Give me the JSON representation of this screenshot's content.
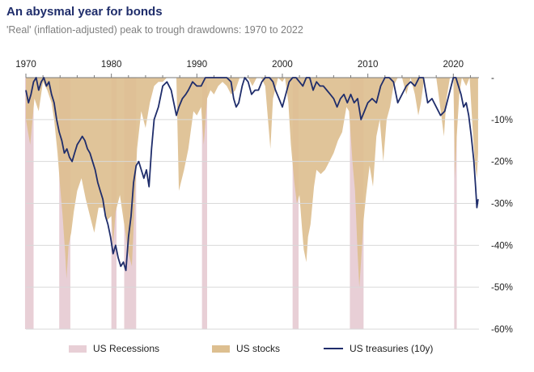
{
  "title": "An abysmal year for bonds",
  "subtitle": "'Real' (inflation-adjusted) peak to trough drawdowns: 1970 to 2022",
  "colors": {
    "recession": "#e8cfd6",
    "stocks": "#ddbf90",
    "treasuries": "#1f2d6b",
    "grid": "#d9d9d9",
    "axis": "#7a7a7a"
  },
  "chart_data": {
    "type": "area",
    "title": "An abysmal year for bonds",
    "subtitle": "'Real' (inflation-adjusted) peak to trough drawdowns: 1970 to 2022",
    "xlabel": "",
    "ylabel": "",
    "xlim": [
      1970,
      2023
    ],
    "ylim": [
      -60,
      0
    ],
    "x_ticks": [
      1970,
      1980,
      1990,
      2000,
      2010,
      2020
    ],
    "y_ticks": [
      {
        "value": 0,
        "label": "-"
      },
      {
        "value": -10,
        "label": "-10%"
      },
      {
        "value": -20,
        "label": "-20%"
      },
      {
        "value": -30,
        "label": "-30%"
      },
      {
        "value": -40,
        "label": "-40%"
      },
      {
        "value": -50,
        "label": "-50%"
      },
      {
        "value": -60,
        "label": "-60%"
      }
    ],
    "grid": "horizontal",
    "legend_position": "bottom",
    "legend": [
      "US Recessions",
      "US stocks",
      "US treasuries (10y)"
    ],
    "recessions": [
      [
        1969.9,
        1970.9
      ],
      [
        1973.9,
        1975.2
      ],
      [
        1980.0,
        1980.6
      ],
      [
        1981.5,
        1982.9
      ],
      [
        1990.6,
        1991.2
      ],
      [
        2001.2,
        2001.9
      ],
      [
        2007.9,
        2009.5
      ],
      [
        2020.1,
        2020.4
      ]
    ],
    "series": [
      {
        "name": "US stocks",
        "type": "area",
        "x": [
          1970.0,
          1970.5,
          1971.0,
          1971.5,
          1972.0,
          1972.5,
          1973.0,
          1973.3,
          1973.7,
          1974.0,
          1974.3,
          1974.6,
          1974.75,
          1975.0,
          1975.3,
          1975.6,
          1976.0,
          1976.5,
          1977.0,
          1977.5,
          1978.0,
          1978.5,
          1979.0,
          1979.5,
          1980.0,
          1980.2,
          1980.5,
          1981.0,
          1981.5,
          1982.0,
          1982.4,
          1982.6,
          1983.0,
          1983.5,
          1984.0,
          1984.5,
          1985.0,
          1985.5,
          1986.0,
          1986.5,
          1987.0,
          1987.6,
          1987.9,
          1988.5,
          1989.0,
          1989.6,
          1990.0,
          1990.5,
          1990.8,
          1991.2,
          1991.6,
          1992.0,
          1992.5,
          1993.0,
          1993.5,
          1994.0,
          1994.5,
          1995.0,
          1995.5,
          1996.0,
          1996.5,
          1997.0,
          1997.5,
          1998.0,
          1998.6,
          1998.9,
          1999.5,
          2000.0,
          2000.3,
          2000.7,
          2001.0,
          2001.4,
          2001.7,
          2002.0,
          2002.3,
          2002.5,
          2002.8,
          2003.0,
          2003.3,
          2003.7,
          2004.0,
          2004.5,
          2005.0,
          2005.5,
          2006.0,
          2006.5,
          2007.0,
          2007.5,
          2007.8,
          2008.2,
          2008.5,
          2008.8,
          2009.0,
          2009.2,
          2009.5,
          2009.8,
          2010.2,
          2010.6,
          2011.0,
          2011.4,
          2011.8,
          2012.2,
          2012.6,
          2013.0,
          2013.5,
          2014.0,
          2014.5,
          2015.0,
          2015.5,
          2015.9,
          2016.2,
          2016.6,
          2017.0,
          2017.5,
          2018.0,
          2018.4,
          2018.9,
          2019.2,
          2019.6,
          2020.0,
          2020.2,
          2020.4,
          2020.7,
          2021.0,
          2021.5,
          2021.9,
          2022.2,
          2022.5,
          2022.75,
          2022.9
        ],
        "values": [
          -10,
          -16,
          -5,
          -8,
          -1,
          -3,
          -6,
          -10,
          -18,
          -26,
          -33,
          -42,
          -48,
          -40,
          -37,
          -32,
          -27,
          -24,
          -29,
          -33,
          -37,
          -31,
          -31,
          -34,
          -33,
          -40,
          -32,
          -28,
          -35,
          -42,
          -45,
          -36,
          -17,
          -8,
          -12,
          -6,
          -2,
          -1,
          -1,
          0,
          0,
          0,
          -27,
          -22,
          -17,
          -8,
          -9,
          -7,
          -16,
          -5,
          -3,
          -4,
          -2,
          -1,
          -2,
          -4,
          -3,
          0,
          0,
          0,
          -2,
          0,
          0,
          -2,
          -17,
          -5,
          0,
          -1,
          0,
          -6,
          -16,
          -25,
          -30,
          -28,
          -36,
          -41,
          -44,
          -38,
          -35,
          -26,
          -22,
          -23,
          -22,
          -20,
          -18,
          -15,
          -13,
          -7,
          -8,
          -20,
          -27,
          -42,
          -50,
          -44,
          -34,
          -28,
          -21,
          -26,
          -14,
          -10,
          -20,
          -10,
          -7,
          -2,
          0,
          0,
          -4,
          0,
          -4,
          -9,
          -6,
          0,
          0,
          0,
          0,
          -6,
          -14,
          -5,
          0,
          0,
          -24,
          -14,
          -4,
          0,
          -2,
          0,
          -10,
          -20,
          -24,
          -18
        ]
      },
      {
        "name": "US treasuries (10y)",
        "type": "line",
        "x": [
          1970.0,
          1970.3,
          1970.6,
          1970.9,
          1971.2,
          1971.5,
          1971.8,
          1972.1,
          1972.4,
          1972.7,
          1973.0,
          1973.3,
          1973.6,
          1973.9,
          1974.2,
          1974.5,
          1974.8,
          1975.1,
          1975.4,
          1975.7,
          1976.0,
          1976.3,
          1976.6,
          1976.9,
          1977.2,
          1977.5,
          1977.8,
          1978.1,
          1978.4,
          1978.7,
          1979.0,
          1979.3,
          1979.6,
          1979.9,
          1980.2,
          1980.5,
          1980.8,
          1981.1,
          1981.4,
          1981.7,
          1982.0,
          1982.3,
          1982.6,
          1982.9,
          1983.2,
          1983.5,
          1983.8,
          1984.1,
          1984.4,
          1984.7,
          1985.0,
          1985.5,
          1986.0,
          1986.5,
          1987.0,
          1987.3,
          1987.6,
          1987.9,
          1988.3,
          1988.7,
          1989.0,
          1989.5,
          1990.0,
          1990.5,
          1991.0,
          1991.5,
          1992.0,
          1992.5,
          1993.0,
          1993.5,
          1994.0,
          1994.3,
          1994.6,
          1994.9,
          1995.3,
          1995.6,
          1996.0,
          1996.4,
          1996.8,
          1997.2,
          1997.6,
          1998.0,
          1998.5,
          1998.9,
          1999.2,
          1999.6,
          2000.0,
          2000.4,
          2000.8,
          2001.2,
          2001.6,
          2002.0,
          2002.4,
          2002.8,
          2003.2,
          2003.6,
          2004.0,
          2004.4,
          2004.8,
          2005.2,
          2005.6,
          2006.0,
          2006.4,
          2006.8,
          2007.2,
          2007.6,
          2008.0,
          2008.4,
          2008.8,
          2009.2,
          2009.6,
          2010.0,
          2010.5,
          2011.0,
          2011.5,
          2012.0,
          2012.5,
          2013.0,
          2013.5,
          2014.0,
          2014.5,
          2015.0,
          2015.5,
          2016.0,
          2016.5,
          2017.0,
          2017.5,
          2018.0,
          2018.5,
          2019.0,
          2019.5,
          2020.0,
          2020.3,
          2020.6,
          2020.9,
          2021.2,
          2021.5,
          2021.8,
          2022.1,
          2022.4,
          2022.6,
          2022.75,
          2022.9
        ],
        "values": [
          -3,
          -6,
          -4,
          -1,
          0,
          -3,
          -1,
          0,
          -2,
          -1,
          -4,
          -6,
          -10,
          -13,
          -15,
          -18,
          -17,
          -19,
          -20,
          -18,
          -16,
          -15,
          -14,
          -15,
          -17,
          -18,
          -20,
          -22,
          -25,
          -27,
          -29,
          -33,
          -35,
          -38,
          -42,
          -40,
          -43,
          -45,
          -44,
          -46,
          -38,
          -33,
          -25,
          -21,
          -20,
          -22,
          -24,
          -22,
          -26,
          -17,
          -10,
          -7,
          -2,
          -1,
          -3,
          -6,
          -9,
          -7,
          -5,
          -4,
          -3,
          -1,
          -2,
          -2,
          0,
          0,
          0,
          0,
          0,
          0,
          -1,
          -5,
          -7,
          -6,
          -2,
          0,
          -1,
          -4,
          -3,
          -3,
          -1,
          0,
          0,
          -1,
          -3,
          -5,
          -7,
          -4,
          -1,
          0,
          0,
          -1,
          -2,
          0,
          0,
          -3,
          -1,
          -2,
          -2,
          -3,
          -4,
          -5,
          -7,
          -5,
          -4,
          -6,
          -4,
          -6,
          -5,
          -10,
          -8,
          -6,
          -5,
          -6,
          -2,
          0,
          0,
          -1,
          -6,
          -4,
          -2,
          -1,
          -2,
          0,
          0,
          -6,
          -5,
          -7,
          -9,
          -8,
          -4,
          0,
          0,
          -2,
          -4,
          -7,
          -6,
          -9,
          -14,
          -20,
          -26,
          -31,
          -29
        ]
      }
    ]
  }
}
